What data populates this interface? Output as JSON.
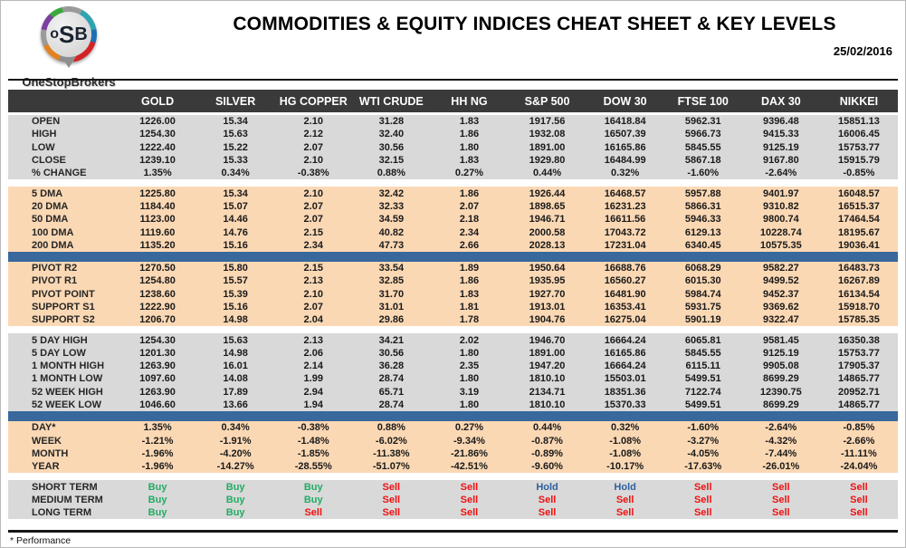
{
  "logo": {
    "acronym_o": "o",
    "acronym_s": "S",
    "acronym_b": "B",
    "brand": "OneStopBrokers"
  },
  "header": {
    "title": "COMMODITIES & EQUITY INDICES CHEAT SHEET & KEY LEVELS",
    "date": "25/02/2016"
  },
  "footnote": "* Performance",
  "colors": {
    "header_bar_bg": "#3a3a3a",
    "section_gray": "#d9d9d9",
    "section_peach": "#fbd8b4",
    "divider_blue": "#38689c",
    "pivot_green": "#00a651",
    "pivot_navy": "#1f3864",
    "pivot_red": "#ee1111",
    "signal_buy": "#21ac64",
    "signal_sell": "#ee1111",
    "signal_hold": "#2e5f9e"
  },
  "table": {
    "columns": [
      "GOLD",
      "SILVER",
      "HG COPPER",
      "WTI CRUDE",
      "HH NG",
      "S&P 500",
      "DOW 30",
      "FTSE 100",
      "DAX 30",
      "NIKKEI"
    ],
    "sections": [
      {
        "bg": "gray",
        "after": "gap",
        "rows": [
          {
            "label": "OPEN",
            "values": [
              "1226.00",
              "15.34",
              "2.10",
              "31.28",
              "1.83",
              "1917.56",
              "16418.84",
              "5962.31",
              "9396.48",
              "15851.13"
            ]
          },
          {
            "label": "HIGH",
            "values": [
              "1254.30",
              "15.63",
              "2.12",
              "32.40",
              "1.86",
              "1932.08",
              "16507.39",
              "5966.73",
              "9415.33",
              "16006.45"
            ]
          },
          {
            "label": "LOW",
            "values": [
              "1222.40",
              "15.22",
              "2.07",
              "30.56",
              "1.80",
              "1891.00",
              "16165.86",
              "5845.55",
              "9125.19",
              "15753.77"
            ]
          },
          {
            "label": "CLOSE",
            "values": [
              "1239.10",
              "15.33",
              "2.10",
              "32.15",
              "1.83",
              "1929.80",
              "16484.99",
              "5867.18",
              "9167.80",
              "15915.79"
            ]
          },
          {
            "label": "% CHANGE",
            "values": [
              "1.35%",
              "0.34%",
              "-0.38%",
              "0.88%",
              "0.27%",
              "0.44%",
              "0.32%",
              "-1.60%",
              "-2.64%",
              "-0.85%"
            ]
          }
        ]
      },
      {
        "bg": "peach",
        "after": "blue",
        "rows": [
          {
            "label": "5 DMA",
            "values": [
              "1225.80",
              "15.34",
              "2.10",
              "32.42",
              "1.86",
              "1926.44",
              "16468.57",
              "5957.88",
              "9401.97",
              "16048.57"
            ]
          },
          {
            "label": "20 DMA",
            "values": [
              "1184.40",
              "15.07",
              "2.07",
              "32.33",
              "2.07",
              "1898.65",
              "16231.23",
              "5866.31",
              "9310.82",
              "16515.37"
            ]
          },
          {
            "label": "50 DMA",
            "values": [
              "1123.00",
              "14.46",
              "2.07",
              "34.59",
              "2.18",
              "1946.71",
              "16611.56",
              "5946.33",
              "9800.74",
              "17464.54"
            ]
          },
          {
            "label": "100 DMA",
            "values": [
              "1119.60",
              "14.76",
              "2.15",
              "40.82",
              "2.34",
              "2000.58",
              "17043.72",
              "6129.13",
              "10228.74",
              "18195.67"
            ]
          },
          {
            "label": "200 DMA",
            "values": [
              "1135.20",
              "15.16",
              "2.34",
              "47.73",
              "2.66",
              "2028.13",
              "17231.04",
              "6340.45",
              "10575.35",
              "19036.41"
            ]
          }
        ]
      },
      {
        "bg": "peach",
        "after": "gap",
        "rows": [
          {
            "label": "PIVOT R2",
            "label_color": "green",
            "values": [
              "1270.50",
              "15.80",
              "2.15",
              "33.54",
              "1.89",
              "1950.64",
              "16688.76",
              "6068.29",
              "9582.27",
              "16483.73"
            ]
          },
          {
            "label": "PIVOT R1",
            "label_color": "green",
            "values": [
              "1254.80",
              "15.57",
              "2.13",
              "32.85",
              "1.86",
              "1935.95",
              "16560.27",
              "6015.30",
              "9499.52",
              "16267.89"
            ]
          },
          {
            "label": "PIVOT POINT",
            "label_color": "navy",
            "values": [
              "1238.60",
              "15.39",
              "2.10",
              "31.70",
              "1.83",
              "1927.70",
              "16481.90",
              "5984.74",
              "9452.37",
              "16134.54"
            ]
          },
          {
            "label": "SUPPORT S1",
            "label_color": "red",
            "values": [
              "1222.90",
              "15.16",
              "2.07",
              "31.01",
              "1.81",
              "1913.01",
              "16353.41",
              "5931.75",
              "9369.62",
              "15918.70"
            ]
          },
          {
            "label": "SUPPORT S2",
            "label_color": "red",
            "values": [
              "1206.70",
              "14.98",
              "2.04",
              "29.86",
              "1.78",
              "1904.76",
              "16275.04",
              "5901.19",
              "9322.47",
              "15785.35"
            ]
          }
        ]
      },
      {
        "bg": "gray",
        "after": "blue",
        "rows": [
          {
            "label": "5 DAY HIGH",
            "values": [
              "1254.30",
              "15.63",
              "2.13",
              "34.21",
              "2.02",
              "1946.70",
              "16664.24",
              "6065.81",
              "9581.45",
              "16350.38"
            ]
          },
          {
            "label": "5 DAY LOW",
            "values": [
              "1201.30",
              "14.98",
              "2.06",
              "30.56",
              "1.80",
              "1891.00",
              "16165.86",
              "5845.55",
              "9125.19",
              "15753.77"
            ]
          },
          {
            "label": "1 MONTH HIGH",
            "values": [
              "1263.90",
              "16.01",
              "2.14",
              "36.28",
              "2.35",
              "1947.20",
              "16664.24",
              "6115.11",
              "9905.08",
              "17905.37"
            ]
          },
          {
            "label": "1 MONTH LOW",
            "values": [
              "1097.60",
              "14.08",
              "1.99",
              "28.74",
              "1.80",
              "1810.10",
              "15503.01",
              "5499.51",
              "8699.29",
              "14865.77"
            ]
          },
          {
            "label": "52 WEEK HIGH",
            "values": [
              "1263.90",
              "17.89",
              "2.94",
              "65.71",
              "3.19",
              "2134.71",
              "18351.36",
              "7122.74",
              "12390.75",
              "20952.71"
            ]
          },
          {
            "label": "52 WEEK LOW",
            "values": [
              "1046.60",
              "13.66",
              "1.94",
              "28.74",
              "1.80",
              "1810.10",
              "15370.33",
              "5499.51",
              "8699.29",
              "14865.77"
            ]
          }
        ]
      },
      {
        "bg": "peach",
        "after": "gap",
        "rows": [
          {
            "label": "DAY*",
            "values": [
              "1.35%",
              "0.34%",
              "-0.38%",
              "0.88%",
              "0.27%",
              "0.44%",
              "0.32%",
              "-1.60%",
              "-2.64%",
              "-0.85%"
            ]
          },
          {
            "label": "WEEK",
            "values": [
              "-1.21%",
              "-1.91%",
              "-1.48%",
              "-6.02%",
              "-9.34%",
              "-0.87%",
              "-1.08%",
              "-3.27%",
              "-4.32%",
              "-2.66%"
            ]
          },
          {
            "label": "MONTH",
            "values": [
              "-1.96%",
              "-4.20%",
              "-1.85%",
              "-11.38%",
              "-21.86%",
              "-0.89%",
              "-1.08%",
              "-4.05%",
              "-7.44%",
              "-11.11%"
            ]
          },
          {
            "label": "YEAR",
            "values": [
              "-1.96%",
              "-14.27%",
              "-28.55%",
              "-51.07%",
              "-42.51%",
              "-9.60%",
              "-10.17%",
              "-17.63%",
              "-26.01%",
              "-24.04%"
            ]
          }
        ]
      },
      {
        "bg": "gray",
        "after": "none",
        "signals": true,
        "rows": [
          {
            "label": "SHORT TERM",
            "values": [
              "Buy",
              "Buy",
              "Buy",
              "Sell",
              "Sell",
              "Hold",
              "Hold",
              "Sell",
              "Sell",
              "Sell"
            ]
          },
          {
            "label": "MEDIUM TERM",
            "values": [
              "Buy",
              "Buy",
              "Buy",
              "Sell",
              "Sell",
              "Sell",
              "Sell",
              "Sell",
              "Sell",
              "Sell"
            ]
          },
          {
            "label": "LONG TERM",
            "values": [
              "Buy",
              "Buy",
              "Sell",
              "Sell",
              "Sell",
              "Sell",
              "Sell",
              "Sell",
              "Sell",
              "Sell"
            ]
          }
        ]
      }
    ]
  }
}
